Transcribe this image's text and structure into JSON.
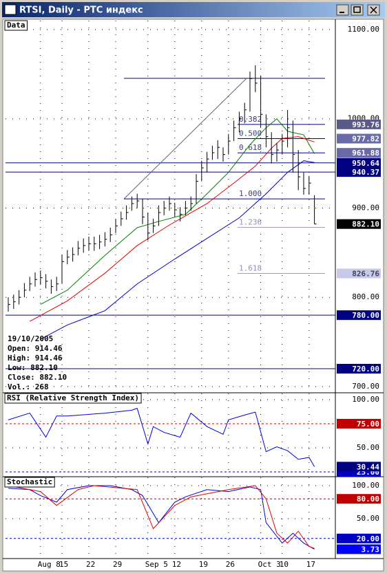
{
  "window": {
    "title": "RTSI, Daily - РТС индекс"
  },
  "chart_data": [
    {
      "type": "ohlc",
      "title": "Data",
      "high": [
        800,
        803,
        808,
        816,
        823,
        828,
        830,
        826,
        820,
        823,
        848,
        853,
        856,
        863,
        866,
        868,
        868,
        870,
        873,
        878,
        888,
        896,
        903,
        913,
        916,
        910,
        895,
        888,
        903,
        908,
        913,
        906,
        901,
        908,
        913,
        938,
        953,
        963,
        970,
        976,
        968,
        983,
        998,
        1008,
        1018,
        1053,
        1060,
        1048,
        1005,
        985,
        973,
        983,
        1010,
        998,
        965,
        940,
        936,
        914.46
      ],
      "low": [
        784,
        787,
        792,
        800,
        807,
        812,
        814,
        810,
        804,
        807,
        815,
        837,
        840,
        847,
        850,
        852,
        852,
        854,
        857,
        862,
        872,
        880,
        887,
        897,
        900,
        882,
        864,
        872,
        880,
        892,
        897,
        890,
        885,
        892,
        897,
        905,
        930,
        940,
        954,
        955,
        952,
        960,
        975,
        985,
        995,
        1008,
        1030,
        990,
        968,
        950,
        952,
        960,
        968,
        940,
        920,
        915,
        915,
        882.1
      ],
      "close": [
        792,
        795,
        800,
        808,
        815,
        820,
        822,
        818,
        812,
        815,
        840,
        845,
        848,
        855,
        858,
        860,
        860,
        862,
        865,
        870,
        880,
        888,
        895,
        905,
        908,
        890,
        872,
        880,
        895,
        900,
        905,
        898,
        893,
        900,
        905,
        930,
        945,
        955,
        962,
        968,
        960,
        975,
        990,
        1000,
        1010,
        1045,
        1040,
        1005,
        980,
        960,
        965,
        975,
        990,
        960,
        935,
        922,
        928,
        882.1
      ],
      "series": [
        {
          "color": "#008000",
          "x": [
            6,
            11,
            18,
            24,
            28,
            33,
            37,
            41,
            45,
            48,
            50,
            52,
            55,
            57
          ],
          "values": [
            792,
            808,
            847,
            878,
            885,
            893,
            916,
            940,
            971,
            990,
            1000,
            986,
            982,
            961
          ]
        },
        {
          "color": "#e00000",
          "x": [
            4,
            11,
            18,
            24,
            30,
            37,
            42,
            46,
            49,
            51,
            54,
            57
          ],
          "values": [
            773,
            796,
            827,
            858,
            881,
            905,
            928,
            947,
            967,
            978,
            980,
            974
          ]
        },
        {
          "color": "#0000c0",
          "x": [
            6,
            11,
            18,
            24,
            30,
            37,
            43,
            48,
            52,
            55,
            57
          ],
          "values": [
            753,
            769,
            785,
            815,
            839,
            866,
            889,
            916,
            940,
            953,
            951
          ]
        }
      ],
      "fib": {
        "high": 1045.36,
        "low": 910.26,
        "levels": [
          {
            "value": 0.382,
            "label": "0.382"
          },
          {
            "value": 0.5,
            "label": "0.500"
          },
          {
            "value": 0.618,
            "label": "0.618"
          },
          {
            "value": 1,
            "label": "1.000"
          },
          {
            "value": 1.236,
            "label": "1.236"
          },
          {
            "value": 1.618,
            "label": "1.618"
          }
        ]
      },
      "hlines": [
        {
          "value": 950.64,
          "label": "950.64",
          "color": "#000080"
        },
        {
          "value": 940.37,
          "label": "940.37",
          "color": "#000080"
        },
        {
          "value": 780,
          "label": "780.00",
          "color": "#000080"
        },
        {
          "value": 720,
          "label": "720.00",
          "color": "#000080"
        }
      ],
      "price_labels": [
        {
          "value": 993.76,
          "label": "993.76",
          "color": "#5a5a88"
        },
        {
          "value": 977.82,
          "label": "977.82",
          "color": "#6a6aa8"
        },
        {
          "value": 961.88,
          "label": "961.88",
          "color": "#6a6aa8"
        },
        {
          "value": 882.1,
          "label": "882.10",
          "color": "#000000"
        },
        {
          "value": 826.76,
          "label": "826.76",
          "color": "#c8c8e8"
        }
      ],
      "info": [
        "19/10/2005",
        "Open: 914.46",
        "High: 914.46",
        "Low: 882.10",
        "Close: 882.10",
        "Vol.: 268"
      ],
      "ylim": [
        693.8,
        1110
      ],
      "yticks": [
        {
          "value": 1100,
          "label": "1100.00"
        },
        {
          "value": 1000,
          "label": "1000.00"
        },
        {
          "value": 900,
          "label": "900.00"
        },
        {
          "value": 800,
          "label": "800.00"
        },
        {
          "value": 700,
          "label": "700.00"
        }
      ],
      "grid": true
    },
    {
      "type": "line",
      "title": "RSI (Relative Strength Index)",
      "series": [
        {
          "color": "#0000e0",
          "x": [
            0,
            4,
            7,
            9,
            11,
            18,
            23,
            24,
            26,
            27,
            29,
            32,
            34,
            37,
            40,
            41,
            44,
            46,
            48,
            50,
            52,
            54,
            56,
            57
          ],
          "values": [
            79,
            86,
            61,
            83,
            83,
            86,
            89,
            91,
            54,
            72,
            66,
            61,
            86,
            72,
            64,
            79,
            84,
            87,
            46,
            51,
            47,
            38,
            40,
            30.44
          ]
        }
      ],
      "bands": [
        {
          "value": 75,
          "label": "75.00",
          "color": "#c00000"
        },
        {
          "value": 25,
          "label": "25.00",
          "color": "#0000c0"
        }
      ],
      "ylim": [
        20.7,
        106.4
      ],
      "yticks": [
        {
          "value": 100,
          "label": "100.00"
        },
        {
          "value": 50,
          "label": "50.00"
        }
      ],
      "grid": true
    },
    {
      "type": "line",
      "title": "Stochastic",
      "categories": [
        null,
        null,
        null,
        null,
        null,
        null,
        "Aug 8",
        null,
        null,
        null,
        "15",
        null,
        null,
        null,
        null,
        "22",
        null,
        null,
        null,
        null,
        "29",
        null,
        null,
        null,
        null,
        null,
        "Sep 5",
        null,
        null,
        null,
        null,
        "12",
        null,
        null,
        null,
        null,
        "19",
        null,
        null,
        null,
        null,
        "26",
        null,
        null,
        null,
        null,
        null,
        "Oct 3",
        null,
        null,
        null,
        "10",
        null,
        null,
        null,
        null,
        "17",
        null
      ],
      "series": [
        {
          "color": "#0000e0",
          "x": [
            0,
            4,
            6,
            9,
            11,
            15,
            19,
            23,
            25,
            28,
            31,
            33,
            37,
            41,
            45,
            47,
            48,
            51,
            53,
            55,
            57
          ],
          "values": [
            96,
            94,
            85,
            75,
            94,
            100,
            100,
            94,
            85,
            44,
            75,
            83,
            94,
            91,
            98,
            94,
            44,
            13,
            28,
            13,
            3.73
          ]
        },
        {
          "color": "#e00000",
          "x": [
            0,
            6,
            9,
            13,
            16,
            24,
            27,
            31,
            34,
            41,
            46,
            48,
            50,
            52,
            54,
            56,
            57
          ],
          "values": [
            100,
            91,
            70,
            94,
            100,
            94,
            35,
            70,
            83,
            94,
            100,
            80,
            28,
            13,
            31,
            8,
            5
          ]
        }
      ],
      "bands": [
        {
          "value": 80,
          "label": "80.00",
          "color": "#c00000"
        },
        {
          "value": 20,
          "label": "20.00",
          "color": "#0000c0"
        }
      ],
      "ylim": [
        -10.4,
        112.5
      ],
      "yticks": [
        {
          "value": 100,
          "label": "100.00"
        },
        {
          "value": 50,
          "label": "50.00"
        }
      ],
      "grid": true
    }
  ]
}
